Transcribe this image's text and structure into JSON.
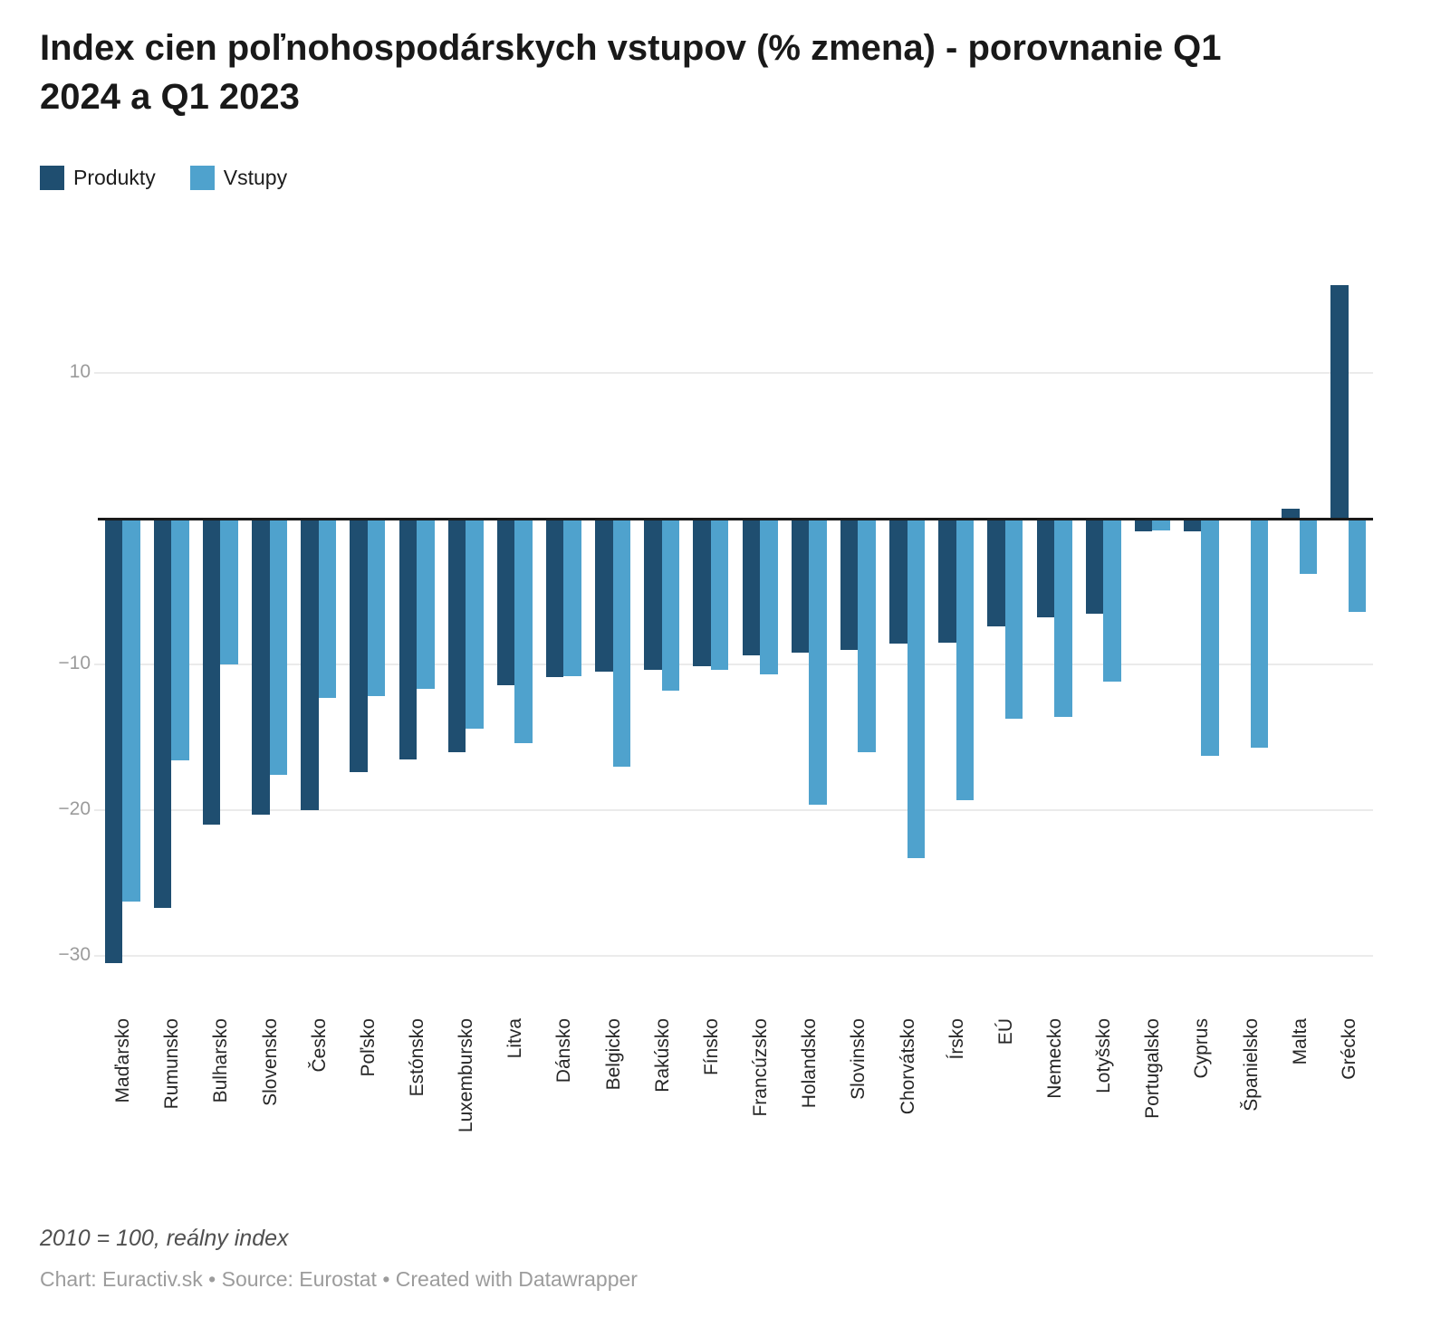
{
  "title": "Index cien poľnohospodárskych vstupov (% zmena) - porovnanie Q1 2024 a Q1 2023",
  "legend": {
    "produkty": "Produkty",
    "vstupy": "Vstupy"
  },
  "footer": {
    "note": "2010 = 100, reálny index",
    "byline": "Chart: Euractiv.sk • Source: Eurostat • Created with Datawrapper"
  },
  "colors": {
    "produkty": "#1f4e70",
    "vstupy": "#4fa2cd",
    "grid": "#ebebeb",
    "baseline": "#1a1a1a",
    "axis_text": "#9b9b9b",
    "label_text": "#262626"
  },
  "chart_data": {
    "type": "bar",
    "title": "Index cien poľnohospodárskych vstupov (% zmena) - porovnanie Q1 2024 a Q1 2023",
    "note": "2010 = 100, reálny index",
    "source": "Chart: Euractiv.sk • Source: Eurostat • Created with Datawrapper",
    "categories": [
      "Maďarsko",
      "Rumunsko",
      "Bulharsko",
      "Slovensko",
      "Česko",
      "Poľsko",
      "Estónsko",
      "Luxembursko",
      "Litva",
      "Dánsko",
      "Belgicko",
      "Rakúsko",
      "Fínsko",
      "Francúzsko",
      "Holandsko",
      "Slovinsko",
      "Chorvátsko",
      "Írsko",
      "EÚ",
      "Nemecko",
      "Lotyšsko",
      "Portugalsko",
      "Cyprus",
      "Španielsko",
      "Malta",
      "Grécko"
    ],
    "series": [
      {
        "name": "Produkty",
        "values": [
          -30.5,
          -26.7,
          -21.0,
          -20.3,
          -20.0,
          -17.4,
          -16.5,
          -16.0,
          -11.4,
          -10.9,
          -10.5,
          -10.4,
          -10.1,
          -9.4,
          -9.2,
          -9.0,
          -8.6,
          -8.5,
          -7.4,
          -6.8,
          -6.5,
          -0.9,
          -0.9,
          -0.1,
          0.7,
          16.0
        ]
      },
      {
        "name": "Vstupy",
        "values": [
          -26.3,
          -16.6,
          -10.0,
          -17.6,
          -12.3,
          -12.2,
          -11.7,
          -14.4,
          -15.4,
          -10.8,
          -17.0,
          -11.8,
          -10.4,
          -10.7,
          -19.6,
          -16.0,
          -23.3,
          -19.3,
          -13.7,
          -13.6,
          -11.2,
          -0.8,
          -16.3,
          -15.7,
          -3.8,
          -6.4
        ]
      }
    ],
    "xlabel": "",
    "ylabel": "",
    "y_ticks": [
      10,
      -10,
      -20,
      -30
    ],
    "ylim": [
      -32,
      17
    ],
    "grid": true,
    "zero_baseline": true,
    "legend_position": "top-left",
    "x_label_rotation": -90
  }
}
